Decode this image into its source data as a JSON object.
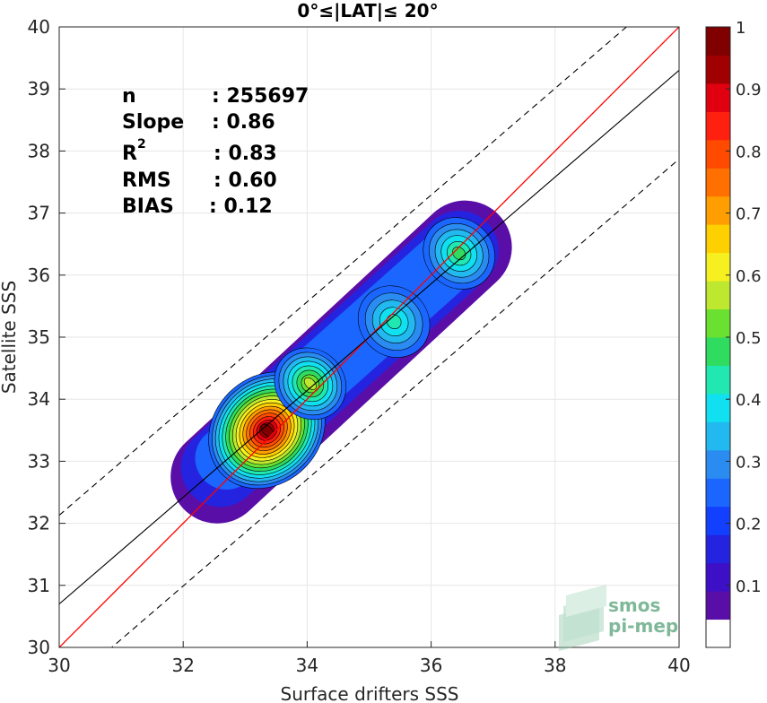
{
  "chart_data": {
    "type": "heatmap",
    "title": "0°≤|LAT|≤ 20°",
    "xlabel": "Surface drifters SSS",
    "ylabel": "Satellite SSS",
    "xlim": [
      30,
      40
    ],
    "ylim": [
      30,
      40
    ],
    "xticks": [
      30,
      32,
      34,
      36,
      38,
      40
    ],
    "yticks": [
      30,
      31,
      32,
      33,
      34,
      35,
      36,
      37,
      38,
      39,
      40
    ],
    "stats": [
      {
        "label": "n",
        "value": ": 255697"
      },
      {
        "label": "Slope",
        "value": ": 0.86"
      },
      {
        "label": "R",
        "sup": "2",
        "value": ": 0.83"
      },
      {
        "label": "RMS",
        "value": ": 0.60"
      },
      {
        "label": "BIAS",
        "value": ": 0.12"
      }
    ],
    "lines": {
      "identity": {
        "slope": 1,
        "intercept": 0,
        "color": "#ff0000"
      },
      "fit": {
        "slope": 0.86,
        "intercept_at_30": 30.7,
        "color": "#000000"
      },
      "fit_upper": {
        "offset": 1.43,
        "style": "dashed"
      },
      "fit_lower": {
        "offset": -1.43,
        "style": "dashed"
      }
    },
    "density_peaks": [
      {
        "x": 33.35,
        "y": 33.5,
        "value": 1.0
      },
      {
        "x": 34.05,
        "y": 34.25,
        "value": 0.55
      },
      {
        "x": 35.4,
        "y": 35.25,
        "value": 0.4
      },
      {
        "x": 36.45,
        "y": 36.35,
        "value": 0.45
      }
    ],
    "colorbar": {
      "range": [
        0,
        1
      ],
      "ticks": [
        "0.1",
        "0.2",
        "0.3",
        "0.4",
        "0.5",
        "0.6",
        "0.7",
        "0.8",
        "0.9",
        "1"
      ],
      "levels": [
        "#ffffff",
        "#5a0ea8",
        "#3d10c8",
        "#2424e0",
        "#1340ff",
        "#1a66ff",
        "#2a8cf0",
        "#22b8f0",
        "#10e0f0",
        "#20e8b0",
        "#30dc60",
        "#6ae030",
        "#bee830",
        "#f6f020",
        "#ffd000",
        "#ff9e00",
        "#ff7000",
        "#ff4a00",
        "#ff2010",
        "#e00010",
        "#a00000",
        "#800000"
      ]
    },
    "grid": true
  },
  "logo": {
    "line1": "smos",
    "line2": "pi-mep"
  }
}
